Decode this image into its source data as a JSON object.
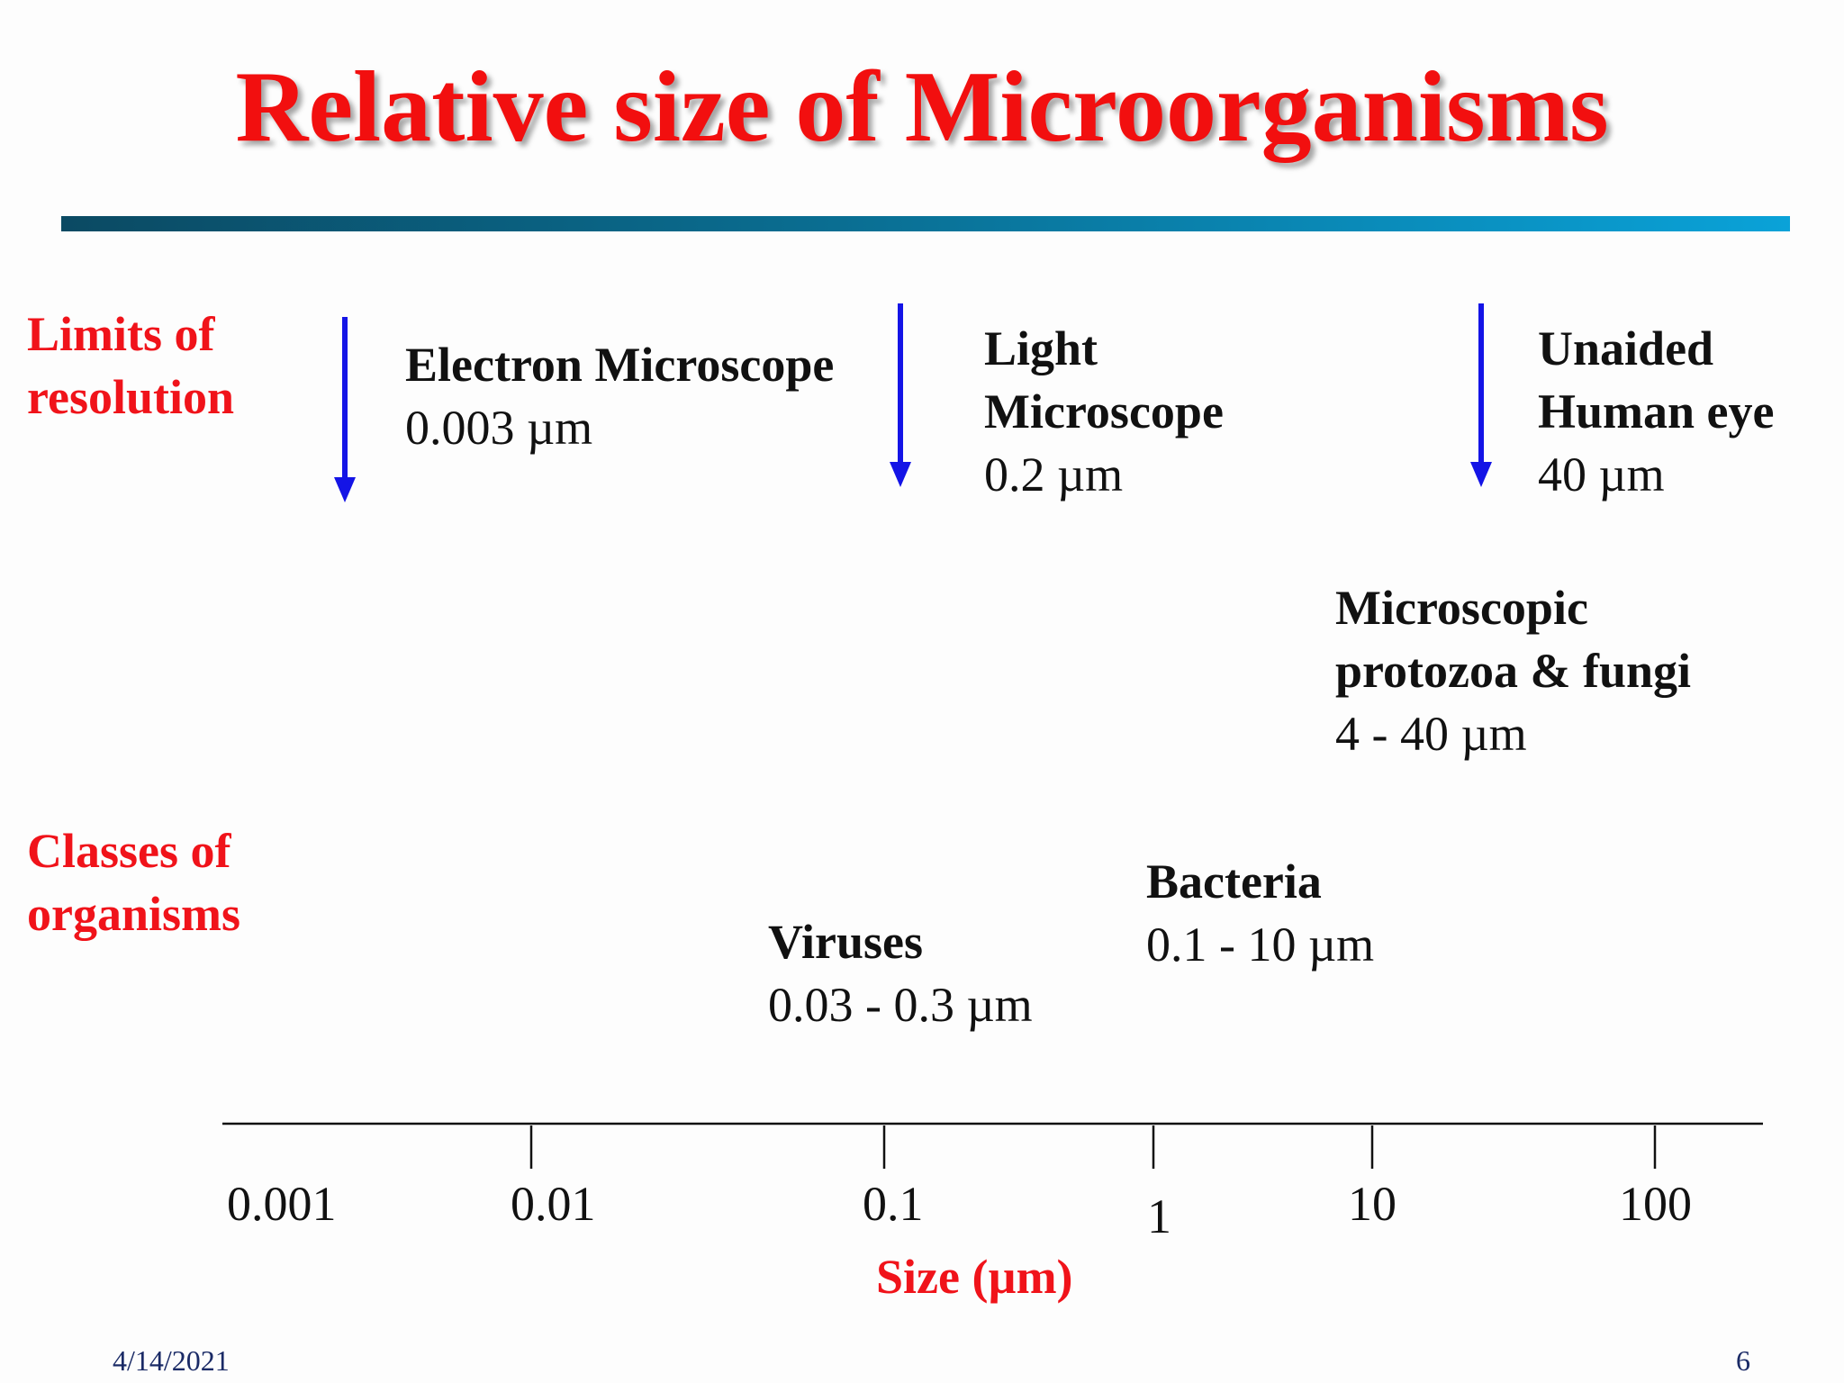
{
  "title": "Relative size of Microorganisms",
  "colors": {
    "title": "#f20f0f",
    "label_red": "#f0131a",
    "arrow_blue": "#1414e6",
    "rule_start": "#0b4a63",
    "rule_end": "#0aa2d8"
  },
  "side_labels": {
    "limits": [
      "Limits of",
      "resolution"
    ],
    "classes": [
      "Classes of",
      "organisms"
    ]
  },
  "limits": [
    {
      "name_lines": [
        "Electron Microscope"
      ],
      "value": "0.003 µm"
    },
    {
      "name_lines": [
        "Light",
        "Microscope"
      ],
      "value": "0.2 µm"
    },
    {
      "name_lines": [
        "Unaided",
        "Human eye"
      ],
      "value": "40 µm"
    }
  ],
  "organisms": [
    {
      "name_lines": [
        "Microscopic",
        "protozoa & fungi"
      ],
      "value": "4 - 40 µm"
    },
    {
      "name_lines": [
        "Bacteria"
      ],
      "value": "0.1 - 10 µm"
    },
    {
      "name_lines": [
        "Viruses"
      ],
      "value": "0.03 - 0.3 µm"
    }
  ],
  "axis": {
    "ticks": [
      "0.001",
      "0.01",
      "0.1",
      "1",
      "10",
      "100"
    ],
    "label": "Size (µm)"
  },
  "footer": {
    "date": "4/14/2021",
    "page": "6"
  }
}
